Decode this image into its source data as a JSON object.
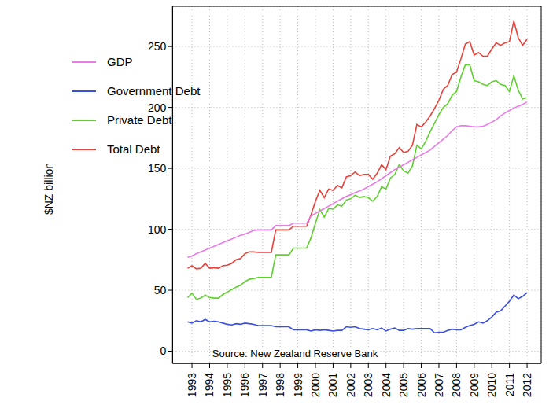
{
  "chart_data": {
    "type": "line",
    "ylabel": "$NZ billion",
    "annotation": "Source: New Zealand Reserve Bank",
    "x": [
      1992.75,
      1993,
      1993.25,
      1993.5,
      1993.75,
      1994,
      1994.25,
      1994.5,
      1994.75,
      1995,
      1995.25,
      1995.5,
      1995.75,
      1996,
      1996.25,
      1996.5,
      1996.75,
      1997,
      1997.25,
      1997.5,
      1997.75,
      1998,
      1998.25,
      1998.5,
      1998.75,
      1999,
      1999.25,
      1999.5,
      1999.75,
      2000,
      2000.25,
      2000.5,
      2000.75,
      2001,
      2001.25,
      2001.5,
      2001.75,
      2002,
      2002.25,
      2002.5,
      2002.75,
      2003,
      2003.25,
      2003.5,
      2003.75,
      2004,
      2004.25,
      2004.5,
      2004.75,
      2005,
      2005.25,
      2005.5,
      2005.75,
      2006,
      2006.25,
      2006.5,
      2006.75,
      2007,
      2007.25,
      2007.5,
      2007.75,
      2008,
      2008.25,
      2008.5,
      2008.75,
      2009,
      2009.25,
      2009.5,
      2009.75,
      2010,
      2010.25,
      2010.5,
      2010.75,
      2011,
      2011.25,
      2011.5,
      2011.75,
      2012
    ],
    "series": [
      {
        "name": "Total Debt",
        "color": "#e8413a",
        "values": [
          68,
          70,
          67.5,
          68,
          72,
          68,
          68.5,
          68,
          70,
          70.5,
          72,
          75,
          76,
          80,
          81.5,
          81.5,
          81,
          81,
          81,
          81,
          99.5,
          99.5,
          99.5,
          99.5,
          102.5,
          102.5,
          102.5,
          102.5,
          112,
          123,
          132,
          126,
          133,
          132,
          136,
          134,
          143,
          144,
          147,
          144,
          145,
          145,
          141,
          146,
          153,
          149,
          160,
          162,
          167,
          163,
          164,
          169,
          186,
          184,
          188,
          193,
          199,
          206,
          215,
          218,
          227,
          229,
          240,
          252,
          254,
          243,
          245,
          242,
          242,
          248,
          253,
          251,
          253,
          254,
          271,
          257,
          251,
          256
        ]
      },
      {
        "name": "Private Debt",
        "color": "#5fd12e",
        "values": [
          44,
          47.5,
          42.5,
          43.5,
          46,
          44,
          43.5,
          43.5,
          46.5,
          48.5,
          50.5,
          52.5,
          54,
          57,
          59,
          59.5,
          60.5,
          60.5,
          60.5,
          60.5,
          79,
          79,
          79,
          79,
          84.5,
          84.5,
          84.5,
          84.5,
          93,
          105,
          116,
          110,
          117,
          116.5,
          120,
          119,
          124,
          125,
          128,
          126,
          127,
          126,
          123,
          127,
          135,
          133,
          142,
          145,
          153,
          148,
          146,
          152,
          169,
          166,
          172,
          180,
          187,
          194,
          200,
          203,
          210,
          213,
          225,
          235,
          235,
          222,
          221,
          219,
          218,
          221,
          222,
          219,
          218,
          213,
          226,
          214,
          207,
          208
        ]
      },
      {
        "name": "Government Debt",
        "color": "#3a4fe0",
        "values": [
          24,
          23,
          25,
          24,
          26,
          24,
          24.5,
          24,
          23,
          22,
          21.5,
          22.5,
          22,
          23,
          22.5,
          22,
          21,
          21,
          21,
          21,
          20,
          20,
          20,
          20,
          17.5,
          17.5,
          17.5,
          17.5,
          16.5,
          17.5,
          17,
          17.5,
          17,
          16.5,
          17,
          17,
          20,
          19.5,
          20,
          18.5,
          18,
          17.5,
          18.5,
          17.5,
          19,
          16.5,
          18,
          19,
          17,
          17,
          18.5,
          18,
          18.5,
          18.5,
          18.5,
          18.5,
          15,
          15.5,
          15.5,
          17,
          18,
          17.5,
          17.5,
          19.5,
          21,
          22,
          24,
          23,
          25,
          28,
          32,
          33,
          37,
          41,
          46,
          43,
          45,
          48
        ]
      },
      {
        "name": "GDP",
        "color": "#e97ae8",
        "values": [
          77,
          78,
          80,
          81.5,
          83,
          84.5,
          86,
          87.5,
          89,
          90.5,
          92,
          93.5,
          95,
          96,
          97.5,
          99,
          99.5,
          99.5,
          99.5,
          99.5,
          103,
          103,
          103,
          103,
          105,
          105,
          105,
          105,
          111,
          113,
          115,
          117,
          119,
          121,
          123,
          125,
          127,
          128.5,
          130,
          131.5,
          133,
          135,
          137,
          139,
          141.5,
          144,
          146.5,
          149,
          151,
          153,
          155,
          157,
          159,
          161,
          163,
          165,
          168,
          171,
          174,
          177,
          181,
          184,
          185,
          185,
          184.5,
          184,
          184,
          184.5,
          186,
          188,
          190,
          193,
          195.5,
          197.5,
          199.5,
          201,
          202.5,
          204.5
        ]
      }
    ],
    "xlim": [
      1991.9,
      2012.8
    ],
    "xticks": [
      1993,
      1994,
      1995,
      1996,
      1997,
      1998,
      1999,
      2000,
      2001,
      2002,
      2003,
      2004,
      2005,
      2006,
      2007,
      2008,
      2009,
      2010,
      2011,
      2012
    ],
    "ylim": [
      -10,
      283
    ],
    "yticks": [
      0,
      50,
      100,
      150,
      200,
      250
    ],
    "grid": true,
    "legend": "upper left"
  }
}
